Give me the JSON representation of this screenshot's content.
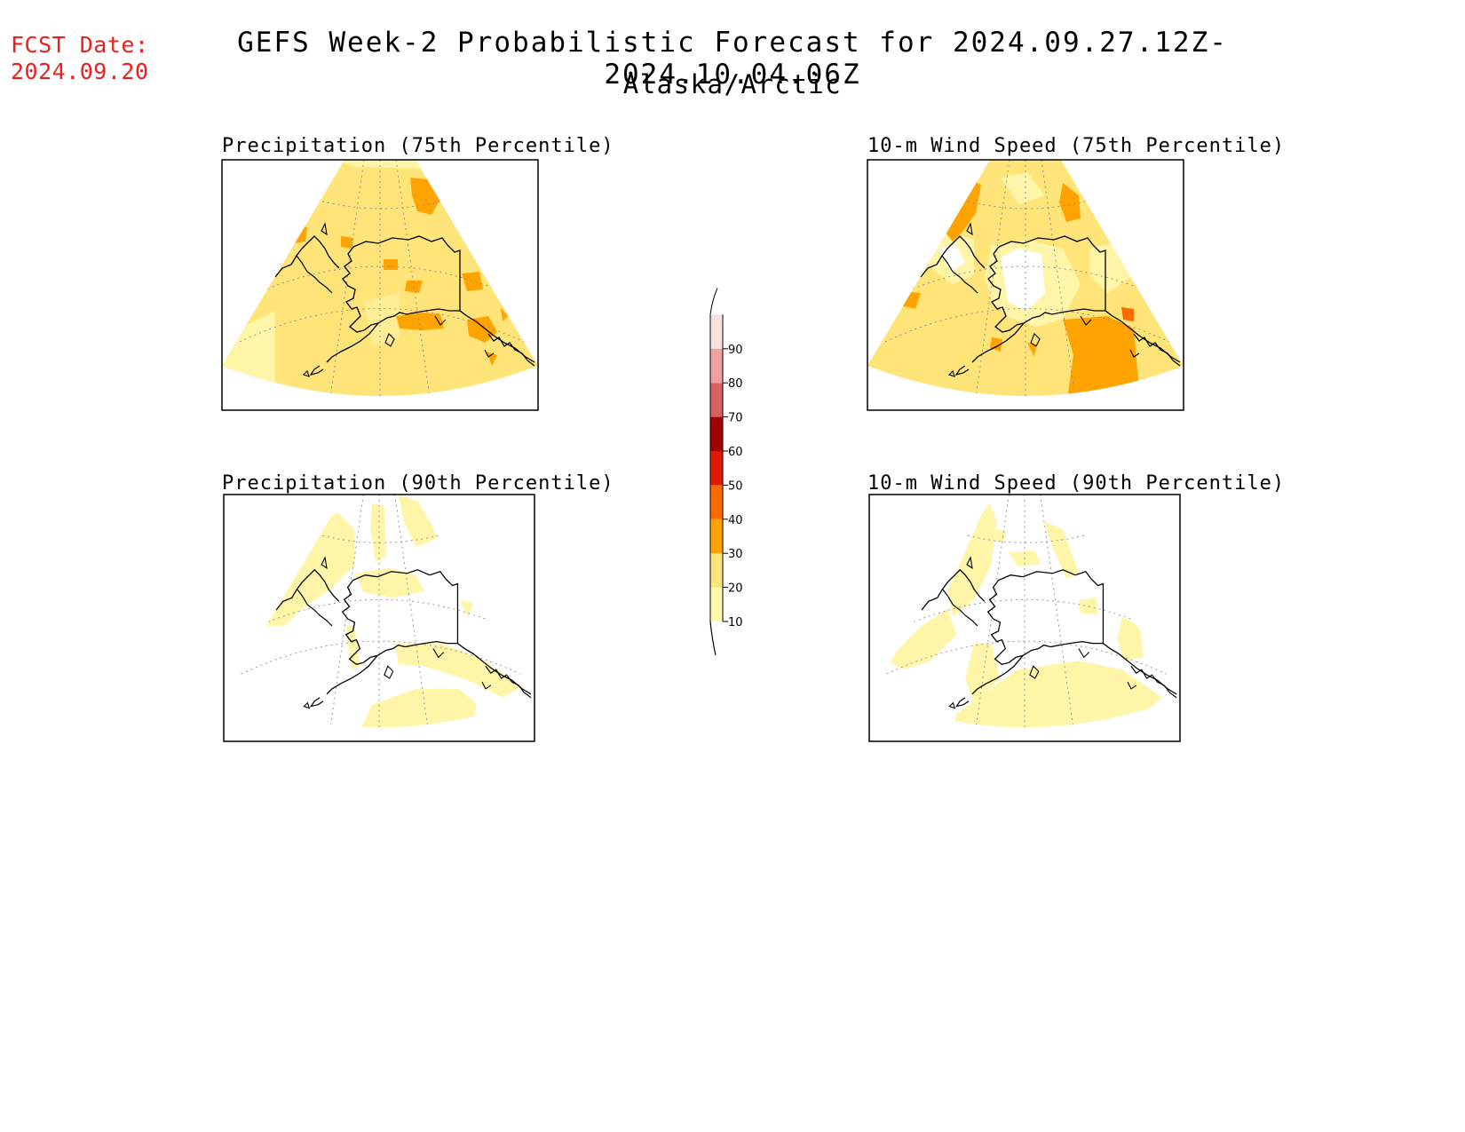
{
  "fcst_label": "FCST Date:",
  "fcst_date": "2024.09.20",
  "title": "GEFS Week-2 Probabilistic Forecast for 2024.09.27.12Z-2024.10.04.06Z",
  "region": "Alaska/Arctic",
  "panels": [
    {
      "id": "precip-75",
      "title": "Precipitation (75th Percentile)"
    },
    {
      "id": "wind-75",
      "title": "10-m Wind Speed (75th Percentile)"
    },
    {
      "id": "precip-90",
      "title": "Precipitation (90th Percentile)"
    },
    {
      "id": "wind-90",
      "title": "10-m Wind Speed (90th Percentile)"
    }
  ],
  "colorbar": {
    "levels": [
      "10",
      "20",
      "30",
      "40",
      "50",
      "60",
      "70",
      "80",
      "90"
    ],
    "colors": [
      "#fffaaa",
      "#ffe47a",
      "#ffa300",
      "#ff6a00",
      "#e01a00",
      "#a00000",
      "#d86060",
      "#f0a0a0",
      "#fbe0e0"
    ]
  },
  "palette": {
    "c10": "#fff5a8",
    "c20": "#ffe47a",
    "c30": "#ffa300",
    "coast": "#000000"
  }
}
